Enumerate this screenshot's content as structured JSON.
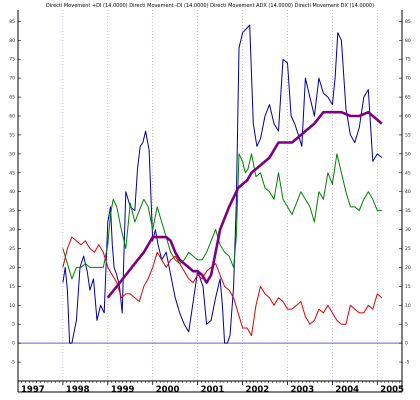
{
  "chart_data": {
    "type": "line",
    "title": "Directi Movement +DI (14.0000) Directi Movement -DI (14.0000) Directi Movement ADX (14.0000) Directi Movement DX (14.0000)",
    "xlabel": "",
    "ylabel": "",
    "x_range": [
      1997.0,
      2005.55
    ],
    "ylim": [
      -10,
      88
    ],
    "yticks": [
      -5,
      0,
      5,
      10,
      15,
      20,
      25,
      30,
      35,
      40,
      45,
      50,
      55,
      60,
      65,
      70,
      75,
      80,
      85
    ],
    "xticks": [
      "1997",
      "1998",
      "1999",
      "2000",
      "2001",
      "2002",
      "2003",
      "2004",
      "2005"
    ],
    "zero_line_color": "#6666cc",
    "grid": "vertical dotted at year boundaries",
    "series": [
      {
        "color": "#0000a0",
        "x": [
          1998.0,
          1998.05,
          1998.1,
          1998.15,
          1998.2,
          1998.25,
          1998.3,
          1998.38,
          1998.46,
          1998.54,
          1998.6,
          1998.68,
          1998.76,
          1998.84,
          1998.92,
          1999.0,
          1999.06,
          1999.1,
          1999.14,
          1999.2,
          1999.26,
          1999.32,
          1999.4,
          1999.5,
          1999.6,
          1999.66,
          1999.72,
          1999.78,
          1999.84,
          1999.92,
          2000.0,
          2000.06,
          2000.12,
          2000.2,
          2000.3,
          2000.4,
          2000.5,
          2000.6,
          2000.7,
          2000.8,
          2000.9,
          2001.0,
          2001.06,
          2001.12,
          2001.2,
          2001.3,
          2001.4,
          2001.5,
          2001.55,
          2001.6,
          2001.66,
          2001.72,
          2001.8,
          2001.86,
          2001.92,
          2002.0,
          2002.08,
          2002.16,
          2002.24,
          2002.32,
          2002.4,
          2002.5,
          2002.6,
          2002.7,
          2002.8,
          2002.9,
          2003.0,
          2003.08,
          2003.16,
          2003.24,
          2003.32,
          2003.4,
          2003.5,
          2003.6,
          2003.7,
          2003.8,
          2003.9,
          2004.0,
          2004.06,
          2004.12,
          2004.2,
          2004.3,
          2004.4,
          2004.5,
          2004.6,
          2004.7,
          2004.8,
          2004.9,
          2005.0,
          2005.1
        ],
        "y": [
          16,
          20,
          14,
          0,
          0,
          3,
          6,
          20,
          23,
          19,
          14,
          17,
          6,
          10,
          8,
          32,
          36,
          26,
          20,
          18,
          15,
          8,
          40,
          36,
          35,
          46,
          52,
          53,
          56,
          51,
          27,
          30,
          26,
          22,
          24,
          18,
          12,
          8,
          5,
          3,
          11,
          19,
          17,
          15,
          5,
          6,
          12,
          17,
          10,
          0,
          0,
          2,
          15,
          37,
          78,
          82,
          83,
          84,
          58,
          52,
          54,
          60,
          63,
          58,
          56,
          75,
          74,
          60,
          58,
          55,
          52,
          70,
          65,
          60,
          70,
          66,
          65,
          63,
          70,
          82,
          80,
          62,
          55,
          53,
          57,
          65,
          67,
          48,
          50,
          49
        ]
      },
      {
        "color": "#008000",
        "x": [
          1998.0,
          1998.1,
          1998.2,
          1998.3,
          1998.4,
          1998.5,
          1998.6,
          1998.7,
          1998.8,
          1998.9,
          1999.0,
          1999.06,
          1999.12,
          1999.2,
          1999.3,
          1999.4,
          1999.5,
          1999.6,
          1999.7,
          1999.8,
          1999.9,
          2000.0,
          2000.1,
          2000.2,
          2000.3,
          2000.4,
          2000.5,
          2000.6,
          2000.7,
          2000.8,
          2000.9,
          2001.0,
          2001.1,
          2001.2,
          2001.3,
          2001.4,
          2001.5,
          2001.6,
          2001.7,
          2001.8,
          2001.86,
          2001.92,
          2002.0,
          2002.06,
          2002.12,
          2002.2,
          2002.3,
          2002.4,
          2002.5,
          2002.6,
          2002.7,
          2002.8,
          2002.9,
          2003.0,
          2003.1,
          2003.2,
          2003.3,
          2003.4,
          2003.5,
          2003.6,
          2003.7,
          2003.8,
          2003.9,
          2004.0,
          2004.1,
          2004.2,
          2004.3,
          2004.4,
          2004.5,
          2004.6,
          2004.7,
          2004.8,
          2004.9,
          2005.0,
          2005.1
        ],
        "y": [
          25,
          21,
          17,
          20,
          20,
          21,
          20,
          20,
          20,
          20,
          26,
          34,
          38,
          36,
          30,
          25,
          37,
          32,
          35,
          38,
          36,
          30,
          36,
          32,
          28,
          24,
          22,
          21,
          22,
          24,
          23,
          22,
          22,
          24,
          27,
          30,
          26,
          24,
          23,
          20,
          28,
          50,
          48,
          45,
          46,
          50,
          44,
          45,
          41,
          40,
          38,
          45,
          38,
          36,
          34,
          37,
          40,
          38,
          36,
          32,
          40,
          38,
          45,
          42,
          50,
          45,
          40,
          36,
          36,
          35,
          38,
          40,
          38,
          35,
          35
        ]
      },
      {
        "color": "#e00000",
        "x": [
          1998.0,
          1998.1,
          1998.2,
          1998.3,
          1998.4,
          1998.5,
          1998.6,
          1998.7,
          1998.8,
          1998.9,
          1999.0,
          1999.1,
          1999.2,
          1999.3,
          1999.4,
          1999.5,
          1999.6,
          1999.7,
          1999.8,
          1999.9,
          2000.0,
          2000.1,
          2000.2,
          2000.3,
          2000.4,
          2000.5,
          2000.6,
          2000.7,
          2000.8,
          2000.9,
          2001.0,
          2001.1,
          2001.2,
          2001.3,
          2001.4,
          2001.5,
          2001.6,
          2001.7,
          2001.8,
          2001.9,
          2002.0,
          2002.1,
          2002.2,
          2002.3,
          2002.4,
          2002.5,
          2002.6,
          2002.7,
          2002.8,
          2002.9,
          2003.0,
          2003.1,
          2003.2,
          2003.3,
          2003.4,
          2003.5,
          2003.6,
          2003.7,
          2003.8,
          2003.9,
          2004.0,
          2004.1,
          2004.2,
          2004.3,
          2004.4,
          2004.5,
          2004.6,
          2004.7,
          2004.8,
          2004.9,
          2005.0,
          2005.1
        ],
        "y": [
          20,
          25,
          28,
          27,
          26,
          27,
          25,
          24,
          26,
          24,
          20,
          18,
          16,
          12,
          13,
          13,
          12,
          11,
          15,
          17,
          20,
          24,
          22,
          20,
          22,
          23,
          21,
          19,
          17,
          16,
          18,
          17,
          19,
          20,
          21,
          18,
          15,
          14,
          12,
          8,
          4,
          4,
          2,
          10,
          15,
          13,
          12,
          10,
          12,
          11,
          9,
          9,
          10,
          11,
          7,
          5,
          6,
          9,
          8,
          10,
          8,
          6,
          5,
          5,
          10,
          9,
          8,
          8,
          10,
          9,
          13,
          12
        ]
      },
      {
        "color": "#7f007f",
        "x": [
          1999.0,
          1999.2,
          1999.4,
          1999.6,
          1999.8,
          2000.0,
          2000.1,
          2000.2,
          2000.3,
          2000.4,
          2000.5,
          2000.6,
          2000.7,
          2000.8,
          2000.9,
          2001.0,
          2001.1,
          2001.2,
          2001.3,
          2001.4,
          2001.5,
          2001.7,
          2001.9,
          2002.0,
          2002.1,
          2002.2,
          2002.4,
          2002.6,
          2002.8,
          2003.0,
          2003.1,
          2003.2,
          2003.4,
          2003.6,
          2003.8,
          2004.0,
          2004.2,
          2004.4,
          2004.6,
          2004.8,
          2004.9,
          2005.0,
          2005.1
        ],
        "y": [
          12,
          15,
          18,
          21,
          24,
          28,
          28,
          28,
          28,
          27,
          24,
          22,
          21,
          20,
          19,
          19,
          18,
          16,
          18,
          24,
          30,
          36,
          41,
          42,
          43,
          45,
          47,
          49,
          53,
          53,
          53,
          54,
          56,
          58,
          61,
          61,
          61,
          60,
          60,
          61,
          60,
          59,
          58
        ]
      }
    ]
  }
}
